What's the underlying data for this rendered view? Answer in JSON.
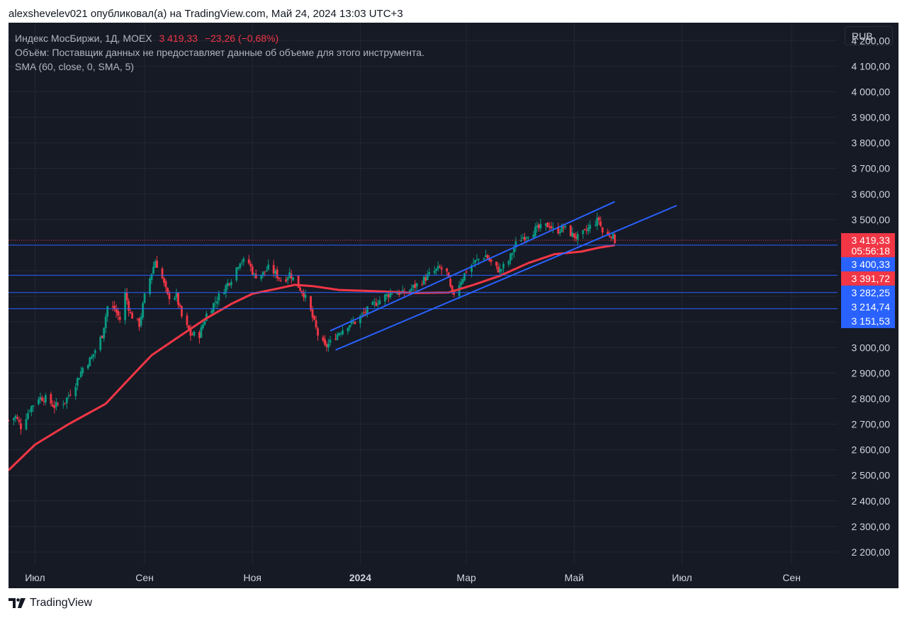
{
  "header": {
    "attribution": "alexshevelev021 опубликовал(а) на TradingView.com, Май 24, 2024 13:03 UTC+3"
  },
  "legend": {
    "symbol": "Индекс МосБиржи, 1Д, MOEX",
    "price": "3 419,33",
    "change": "−23,26 (−0,68%)",
    "volume_note": "Объём: Поставщик данных не предоставляет данные об объеме для этого инструмента.",
    "sma": "SMA (60, close, 0, SMA, 5)"
  },
  "currency_button": "RUB",
  "footer": {
    "brand": "TradingView"
  },
  "colors": {
    "background": "#161a25",
    "grid": "#232733",
    "axis_text": "#d1d4dc",
    "candle_up": "#089981",
    "candle_down": "#f23645",
    "sma": "#f23645",
    "lines": "#2962ff",
    "label_red": "#f23645",
    "label_blue": "#2962ff"
  },
  "chart_data": {
    "type": "candlestick",
    "title": "Индекс МосБиржи, 1Д, MOEX",
    "ylim": [
      2150,
      4270
    ],
    "y_ticks": [
      2200,
      2300,
      2400,
      2500,
      2600,
      2700,
      2800,
      2900,
      3000,
      3100,
      3200,
      3300,
      3400,
      3500,
      3600,
      3700,
      3800,
      3900,
      4000,
      4100,
      4200
    ],
    "y_tick_labels": [
      "2 200,00",
      "2 300,00",
      "2 400,00",
      "2 500,00",
      "2 600,00",
      "2 700,00",
      "2 800,00",
      "2 900,00",
      "3 000,00",
      "3 100,00",
      "3 200,00",
      "3 300,00",
      "3 400,00",
      "3 500,00",
      "3 600,00",
      "3 700,00",
      "3 800,00",
      "3 900,00",
      "4 000,00",
      "4 100,00",
      "4 200,00"
    ],
    "x_range": [
      "2023-06-16",
      "2024-09-27"
    ],
    "x_ticks": [
      {
        "date": "2023-07-01",
        "label": "Июл",
        "bold": false
      },
      {
        "date": "2023-09-01",
        "label": "Сен",
        "bold": false
      },
      {
        "date": "2023-11-01",
        "label": "Ноя",
        "bold": false
      },
      {
        "date": "2024-01-01",
        "label": "2024",
        "bold": true
      },
      {
        "date": "2024-03-01",
        "label": "Мар",
        "bold": false
      },
      {
        "date": "2024-05-01",
        "label": "Май",
        "bold": false
      },
      {
        "date": "2024-07-01",
        "label": "Июл",
        "bold": false
      },
      {
        "date": "2024-09-01",
        "label": "Сен",
        "bold": false
      }
    ],
    "price_path": [
      [
        "2023-06-16",
        2715
      ],
      [
        "2023-06-20",
        2730
      ],
      [
        "2023-06-23",
        2690
      ],
      [
        "2023-06-28",
        2760
      ],
      [
        "2023-07-03",
        2805
      ],
      [
        "2023-07-07",
        2800
      ],
      [
        "2023-07-12",
        2770
      ],
      [
        "2023-07-18",
        2790
      ],
      [
        "2023-07-24",
        2860
      ],
      [
        "2023-07-28",
        2920
      ],
      [
        "2023-08-02",
        2960
      ],
      [
        "2023-08-08",
        3050
      ],
      [
        "2023-08-11",
        3160
      ],
      [
        "2023-08-15",
        3150
      ],
      [
        "2023-08-18",
        3110
      ],
      [
        "2023-08-21",
        3210
      ],
      [
        "2023-08-24",
        3130
      ],
      [
        "2023-08-29",
        3090
      ],
      [
        "2023-09-01",
        3200
      ],
      [
        "2023-09-04",
        3270
      ],
      [
        "2023-09-07",
        3340
      ],
      [
        "2023-09-11",
        3270
      ],
      [
        "2023-09-14",
        3200
      ],
      [
        "2023-09-19",
        3200
      ],
      [
        "2023-09-22",
        3120
      ],
      [
        "2023-09-27",
        3050
      ],
      [
        "2023-10-02",
        3050
      ],
      [
        "2023-10-06",
        3130
      ],
      [
        "2023-10-11",
        3180
      ],
      [
        "2023-10-16",
        3230
      ],
      [
        "2023-10-20",
        3270
      ],
      [
        "2023-10-25",
        3340
      ],
      [
        "2023-10-30",
        3330
      ],
      [
        "2023-11-02",
        3280
      ],
      [
        "2023-11-07",
        3290
      ],
      [
        "2023-11-10",
        3310
      ],
      [
        "2023-11-14",
        3290
      ],
      [
        "2023-11-18",
        3255
      ],
      [
        "2023-11-22",
        3290
      ],
      [
        "2023-11-27",
        3240
      ],
      [
        "2023-11-30",
        3210
      ],
      [
        "2023-12-04",
        3140
      ],
      [
        "2023-12-08",
        3050
      ],
      [
        "2023-12-12",
        3000
      ],
      [
        "2023-12-15",
        3020
      ],
      [
        "2023-12-20",
        3060
      ],
      [
        "2023-12-25",
        3090
      ],
      [
        "2023-12-29",
        3100
      ],
      [
        "2024-01-04",
        3140
      ],
      [
        "2024-01-09",
        3170
      ],
      [
        "2024-01-15",
        3200
      ],
      [
        "2024-01-20",
        3220
      ],
      [
        "2024-01-25",
        3210
      ],
      [
        "2024-01-30",
        3230
      ],
      [
        "2024-02-05",
        3260
      ],
      [
        "2024-02-10",
        3290
      ],
      [
        "2024-02-15",
        3310
      ],
      [
        "2024-02-19",
        3290
      ],
      [
        "2024-02-22",
        3200
      ],
      [
        "2024-02-26",
        3250
      ],
      [
        "2024-03-01",
        3300
      ],
      [
        "2024-03-05",
        3330
      ],
      [
        "2024-03-09",
        3350
      ],
      [
        "2024-03-12",
        3360
      ],
      [
        "2024-03-16",
        3320
      ],
      [
        "2024-03-20",
        3300
      ],
      [
        "2024-03-25",
        3340
      ],
      [
        "2024-03-30",
        3420
      ],
      [
        "2024-04-04",
        3440
      ],
      [
        "2024-04-09",
        3460
      ],
      [
        "2024-04-13",
        3470
      ],
      [
        "2024-04-17",
        3480
      ],
      [
        "2024-04-20",
        3450
      ],
      [
        "2024-04-25",
        3470
      ],
      [
        "2024-04-30",
        3440
      ],
      [
        "2024-05-03",
        3430
      ],
      [
        "2024-05-07",
        3450
      ],
      [
        "2024-05-11",
        3480
      ],
      [
        "2024-05-15",
        3500
      ],
      [
        "2024-05-17",
        3450
      ],
      [
        "2024-05-20",
        3440
      ],
      [
        "2024-05-22",
        3442
      ],
      [
        "2024-05-24",
        3419
      ]
    ],
    "sma_path": [
      [
        "2023-06-16",
        2520
      ],
      [
        "2023-07-01",
        2620
      ],
      [
        "2023-07-20",
        2700
      ],
      [
        "2023-08-10",
        2780
      ],
      [
        "2023-08-25",
        2890
      ],
      [
        "2023-09-05",
        2970
      ],
      [
        "2023-09-20",
        3040
      ],
      [
        "2023-10-05",
        3110
      ],
      [
        "2023-10-20",
        3170
      ],
      [
        "2023-11-01",
        3210
      ],
      [
        "2023-11-15",
        3230
      ],
      [
        "2023-11-25",
        3245
      ],
      [
        "2023-12-05",
        3240
      ],
      [
        "2023-12-20",
        3225
      ],
      [
        "2024-01-10",
        3220
      ],
      [
        "2024-02-01",
        3213
      ],
      [
        "2024-02-20",
        3215
      ],
      [
        "2024-03-05",
        3245
      ],
      [
        "2024-03-20",
        3280
      ],
      [
        "2024-04-05",
        3330
      ],
      [
        "2024-04-20",
        3365
      ],
      [
        "2024-05-05",
        3375
      ],
      [
        "2024-05-15",
        3390
      ],
      [
        "2024-05-24",
        3400
      ]
    ],
    "trend_lines": [
      {
        "from": [
          "2023-12-15",
          3065
        ],
        "to": [
          "2024-05-24",
          3570
        ]
      },
      {
        "from": [
          "2023-12-18",
          2990
        ],
        "to": [
          "2024-06-28",
          3555
        ]
      }
    ],
    "horizontal_lines": [
      3400.33,
      3282.25,
      3214.74,
      3151.53
    ],
    "current_price_line": 3419.33,
    "price_labels": [
      {
        "value": 3419.33,
        "text": "3 419,33",
        "sub": "05:56:18",
        "color": "#f23645"
      },
      {
        "value": 3400.33,
        "text": "3 400,33",
        "color": "#2962ff"
      },
      {
        "value": 3391.72,
        "text": "3 391,72",
        "color": "#f23645"
      },
      {
        "value": 3282.25,
        "text": "3 282,25",
        "color": "#2962ff"
      },
      {
        "value": 3214.74,
        "text": "3 214,74",
        "color": "#2962ff"
      },
      {
        "value": 3151.53,
        "text": "3 151,53",
        "color": "#2962ff"
      }
    ]
  }
}
